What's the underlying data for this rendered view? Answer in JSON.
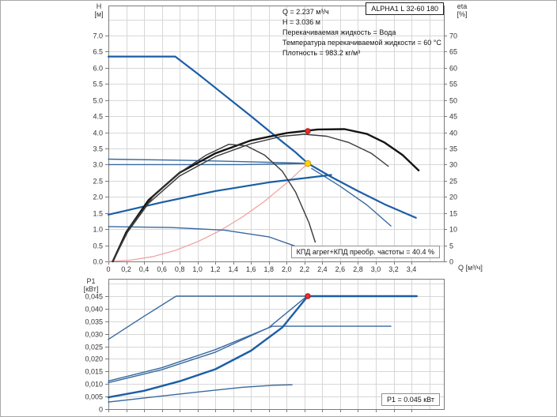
{
  "info_block": {
    "lines": [
      "Q = 2.237 м³/ч",
      "H = 3.036 м",
      "Перекачиваемая жидкость = Вода",
      "Температура перекачиваемой жидкости = 60 °C",
      "Плотность = 983.2 кг/м³"
    ]
  },
  "colors": {
    "blue_thick": "#1b5ea6",
    "blue_thin": "#38699f",
    "black_thick": "#141414",
    "black_thin": "#3a3a3a",
    "system_curve": "#ef9f9f",
    "red_dot": "#e8302a",
    "yellow_dot": "#ffd400",
    "grid": "#d7d7d7",
    "axis": "#7a7a7a"
  },
  "chart_data": [
    {
      "id": "head",
      "type": "line",
      "title": "ALPHA1 L 32-60 180",
      "annotation": "КПД агрег+КПД преобр. частоты = 40.4 %",
      "duty_point": {
        "q": 2.237,
        "h": 3.036,
        "eta": 40.4
      },
      "x_axis": {
        "label": "Q [м³/ч]",
        "min": 0,
        "max": 3.76,
        "grid_step": 0.2,
        "ticks": [
          [
            0,
            "0"
          ],
          [
            0.2,
            "0,2"
          ],
          [
            0.4,
            "0,4"
          ],
          [
            0.6,
            "0,6"
          ],
          [
            0.8,
            "0,8"
          ],
          [
            1.0,
            "1,0"
          ],
          [
            1.2,
            "1,2"
          ],
          [
            1.4,
            "1,4"
          ],
          [
            1.6,
            "1,6"
          ],
          [
            1.8,
            "1,8"
          ],
          [
            2.0,
            "2,0"
          ],
          [
            2.2,
            "2,2"
          ],
          [
            2.4,
            "2,4"
          ],
          [
            2.6,
            "2,6"
          ],
          [
            2.8,
            "2,8"
          ],
          [
            3.0,
            "3,0"
          ],
          [
            3.2,
            "3,2"
          ],
          [
            3.4,
            "3,4"
          ]
        ]
      },
      "y_left": {
        "label_top": "H",
        "label_unit": "[м]",
        "min": 0,
        "max": 7.9,
        "grid_step": 0.5,
        "ticks": [
          [
            7.0,
            "7.0"
          ],
          [
            6.5,
            "6.5"
          ],
          [
            6.0,
            "6.0"
          ],
          [
            5.5,
            "5.5"
          ],
          [
            5.0,
            "5.0"
          ],
          [
            4.5,
            "4.5"
          ],
          [
            4.0,
            "4.0"
          ],
          [
            3.5,
            "3.5"
          ],
          [
            3.0,
            "3.0"
          ],
          [
            2.5,
            "2.5"
          ],
          [
            2.0,
            "2.0"
          ],
          [
            1.5,
            "1.5"
          ],
          [
            1.0,
            "1.0"
          ],
          [
            0.5,
            "0.5"
          ],
          [
            0.0,
            "0.0"
          ]
        ]
      },
      "y_right": {
        "label_top": "eta",
        "label_unit": "[%]",
        "min": 0,
        "max": 79,
        "ticks": [
          [
            70,
            "70"
          ],
          [
            65,
            "65"
          ],
          [
            60,
            "60"
          ],
          [
            55,
            "55"
          ],
          [
            50,
            "50"
          ],
          [
            45,
            "45"
          ],
          [
            40,
            "40"
          ],
          [
            35,
            "35"
          ],
          [
            30,
            "30"
          ],
          [
            25,
            "25"
          ],
          [
            20,
            "20"
          ],
          [
            15,
            "15"
          ],
          [
            10,
            "10"
          ],
          [
            5,
            "5"
          ],
          [
            0,
            "0"
          ]
        ]
      },
      "series": [
        {
          "name": "system-curve",
          "axis": "left",
          "color": "#ef9f9f",
          "width": 1.2,
          "points": [
            [
              0,
              0
            ],
            [
              0.25,
              0.04
            ],
            [
              0.5,
              0.15
            ],
            [
              0.75,
              0.34
            ],
            [
              1.0,
              0.61
            ],
            [
              1.25,
              0.95
            ],
            [
              1.5,
              1.37
            ],
            [
              1.75,
              1.86
            ],
            [
              2.0,
              2.43
            ],
            [
              2.237,
              3.036
            ]
          ]
        },
        {
          "name": "max-speed-curve",
          "axis": "left",
          "color": "#1b5ea6",
          "width": 2.2,
          "points": [
            [
              0,
              6.35
            ],
            [
              0.75,
              6.35
            ],
            [
              1.0,
              5.82
            ],
            [
              1.3,
              5.16
            ],
            [
              1.6,
              4.5
            ],
            [
              1.9,
              3.82
            ],
            [
              2.1,
              3.38
            ],
            [
              2.237,
              3.04
            ],
            [
              2.5,
              2.62
            ],
            [
              2.8,
              2.18
            ],
            [
              3.1,
              1.77
            ],
            [
              3.45,
              1.35
            ]
          ]
        },
        {
          "name": "speed2-curve",
          "axis": "left",
          "color": "#38699f",
          "width": 1.4,
          "points": [
            [
              2.28,
              2.88
            ],
            [
              2.6,
              2.33
            ],
            [
              2.9,
              1.75
            ],
            [
              3.17,
              1.1
            ]
          ]
        },
        {
          "name": "control-curve-upper",
          "axis": "left",
          "color": "#38699f",
          "width": 1.4,
          "points": [
            [
              0,
              3.17
            ],
            [
              0.9,
              3.13
            ],
            [
              1.7,
              3.08
            ],
            [
              2.237,
              3.04
            ]
          ]
        },
        {
          "name": "control-curve-flat",
          "axis": "left",
          "color": "#38699f",
          "width": 1.4,
          "points": [
            [
              0,
              3.0
            ],
            [
              1.5,
              3.0
            ],
            [
              2.237,
              3.036
            ]
          ]
        },
        {
          "name": "proportional-curve",
          "axis": "left",
          "color": "#1b5ea6",
          "width": 2.2,
          "points": [
            [
              0,
              1.45
            ],
            [
              0.6,
              1.83
            ],
            [
              1.2,
              2.18
            ],
            [
              1.8,
              2.45
            ],
            [
              2.5,
              2.68
            ]
          ]
        },
        {
          "name": "min-speed-curve",
          "axis": "left",
          "color": "#38699f",
          "width": 1.4,
          "points": [
            [
              0,
              1.08
            ],
            [
              0.7,
              1.05
            ],
            [
              1.3,
              0.97
            ],
            [
              1.8,
              0.76
            ],
            [
              2.1,
              0.47
            ]
          ]
        },
        {
          "name": "efficiency-max",
          "axis": "right",
          "color": "#141414",
          "width": 2.4,
          "points": [
            [
              0.05,
              0
            ],
            [
              0.2,
              9
            ],
            [
              0.45,
              19
            ],
            [
              0.8,
              27.5
            ],
            [
              1.2,
              33.5
            ],
            [
              1.6,
              37.5
            ],
            [
              2.0,
              39.8
            ],
            [
              2.35,
              40.9
            ],
            [
              2.65,
              41
            ],
            [
              2.9,
              39.5
            ],
            [
              3.1,
              36.8
            ],
            [
              3.3,
              33
            ],
            [
              3.48,
              28.2
            ]
          ]
        },
        {
          "name": "efficiency-2",
          "axis": "right",
          "color": "#3a3a3a",
          "width": 1.4,
          "points": [
            [
              0.05,
              0
            ],
            [
              0.2,
              8.5
            ],
            [
              0.45,
              18
            ],
            [
              0.8,
              26.5
            ],
            [
              1.2,
              32.5
            ],
            [
              1.6,
              36.5
            ],
            [
              1.95,
              38.8
            ],
            [
              2.2,
              39.4
            ],
            [
              2.45,
              38.8
            ],
            [
              2.7,
              36.8
            ],
            [
              2.95,
              33.5
            ],
            [
              3.14,
              29.5
            ]
          ]
        },
        {
          "name": "efficiency-3",
          "axis": "right",
          "color": "#3a3a3a",
          "width": 1.4,
          "points": [
            [
              0.05,
              0
            ],
            [
              0.25,
              11
            ],
            [
              0.5,
              20
            ],
            [
              0.8,
              27.5
            ],
            [
              1.1,
              33
            ],
            [
              1.35,
              36.3
            ],
            [
              1.55,
              35.8
            ],
            [
              1.75,
              33
            ],
            [
              1.95,
              28
            ],
            [
              2.1,
              21.5
            ],
            [
              2.25,
              12
            ],
            [
              2.32,
              6
            ]
          ]
        }
      ],
      "markers": [
        {
          "name": "efficiency-duty-point",
          "axis": "right",
          "x": 2.237,
          "y": 40.4,
          "r": 3.2,
          "fill": "#e8302a",
          "stroke": "#b01515"
        },
        {
          "name": "duty-point",
          "axis": "left",
          "x": 2.237,
          "y": 3.036,
          "r": 3.8,
          "fill": "#ffd400",
          "stroke": "#c9940a"
        }
      ]
    },
    {
      "id": "power",
      "type": "line",
      "annotation": "P1 = 0.045 кВт",
      "duty_point": {
        "q": 2.237,
        "p1_kw": 0.045
      },
      "x_axis": {
        "min": 0,
        "max": 3.76,
        "grid_step": 0.2,
        "ticks": []
      },
      "y_left": {
        "label_top": "P1",
        "label_unit": "[кВт]",
        "min": 0,
        "max": 0.052,
        "grid_step": 0.005,
        "ticks": [
          [
            0.045,
            "0,045"
          ],
          [
            0.04,
            "0,040"
          ],
          [
            0.035,
            "0,035"
          ],
          [
            0.03,
            "0,030"
          ],
          [
            0.025,
            "0,025"
          ],
          [
            0.02,
            "0,020"
          ],
          [
            0.015,
            "0,015"
          ],
          [
            0.01,
            "0,010"
          ],
          [
            0.005,
            "0,005"
          ],
          [
            0,
            "0"
          ]
        ]
      },
      "series": [
        {
          "name": "max-power-curve",
          "axis": "left",
          "color": "#38699f",
          "width": 1.4,
          "points": [
            [
              0,
              0.0278
            ],
            [
              0.4,
              0.037
            ],
            [
              0.76,
              0.045
            ],
            [
              2.237,
              0.045
            ]
          ]
        },
        {
          "name": "max-power-flat-thick",
          "axis": "left",
          "color": "#1b5ea6",
          "width": 2.4,
          "points": [
            [
              2.237,
              0.045
            ],
            [
              3.46,
              0.045
            ]
          ]
        },
        {
          "name": "power-line-a",
          "axis": "left",
          "color": "#38699f",
          "width": 1.4,
          "points": [
            [
              0,
              0.0112
            ],
            [
              0.6,
              0.0165
            ],
            [
              1.2,
              0.0237
            ],
            [
              1.84,
              0.033
            ],
            [
              3.17,
              0.033
            ]
          ]
        },
        {
          "name": "power-line-b",
          "axis": "left",
          "color": "#38699f",
          "width": 1.4,
          "points": [
            [
              0,
              0.0105
            ],
            [
              0.6,
              0.0157
            ],
            [
              1.2,
              0.0227
            ],
            [
              1.8,
              0.0325
            ],
            [
              2.21,
              0.0445
            ]
          ]
        },
        {
          "name": "duty-power-curve",
          "axis": "left",
          "color": "#1b5ea6",
          "width": 2.4,
          "points": [
            [
              0,
              0.0047
            ],
            [
              0.4,
              0.0073
            ],
            [
              0.8,
              0.0111
            ],
            [
              1.2,
              0.0159
            ],
            [
              1.6,
              0.0233
            ],
            [
              1.95,
              0.0325
            ],
            [
              2.237,
              0.045
            ]
          ]
        },
        {
          "name": "min-power-curve",
          "axis": "left",
          "color": "#38699f",
          "width": 1.4,
          "points": [
            [
              0,
              0.0028
            ],
            [
              0.5,
              0.0048
            ],
            [
              1.0,
              0.0068
            ],
            [
              1.5,
              0.0087
            ],
            [
              1.85,
              0.0095
            ],
            [
              2.06,
              0.0097
            ]
          ]
        }
      ],
      "markers": [
        {
          "name": "power-duty-point",
          "axis": "left",
          "x": 2.237,
          "y": 0.045,
          "r": 3.2,
          "fill": "#e8302a",
          "stroke": "#b01515"
        }
      ]
    }
  ]
}
